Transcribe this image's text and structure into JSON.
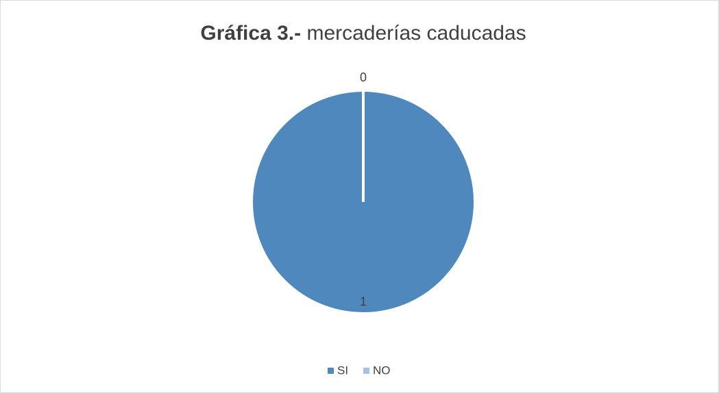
{
  "chart_data": {
    "type": "pie",
    "title_prefix": "Gráfica 3.-",
    "title": "mercaderías caducadas",
    "categories": [
      "SI",
      "NO"
    ],
    "values": [
      1,
      0
    ],
    "colors": [
      "#4f88bd",
      "#a4c2e3"
    ],
    "legend": "bottom"
  }
}
